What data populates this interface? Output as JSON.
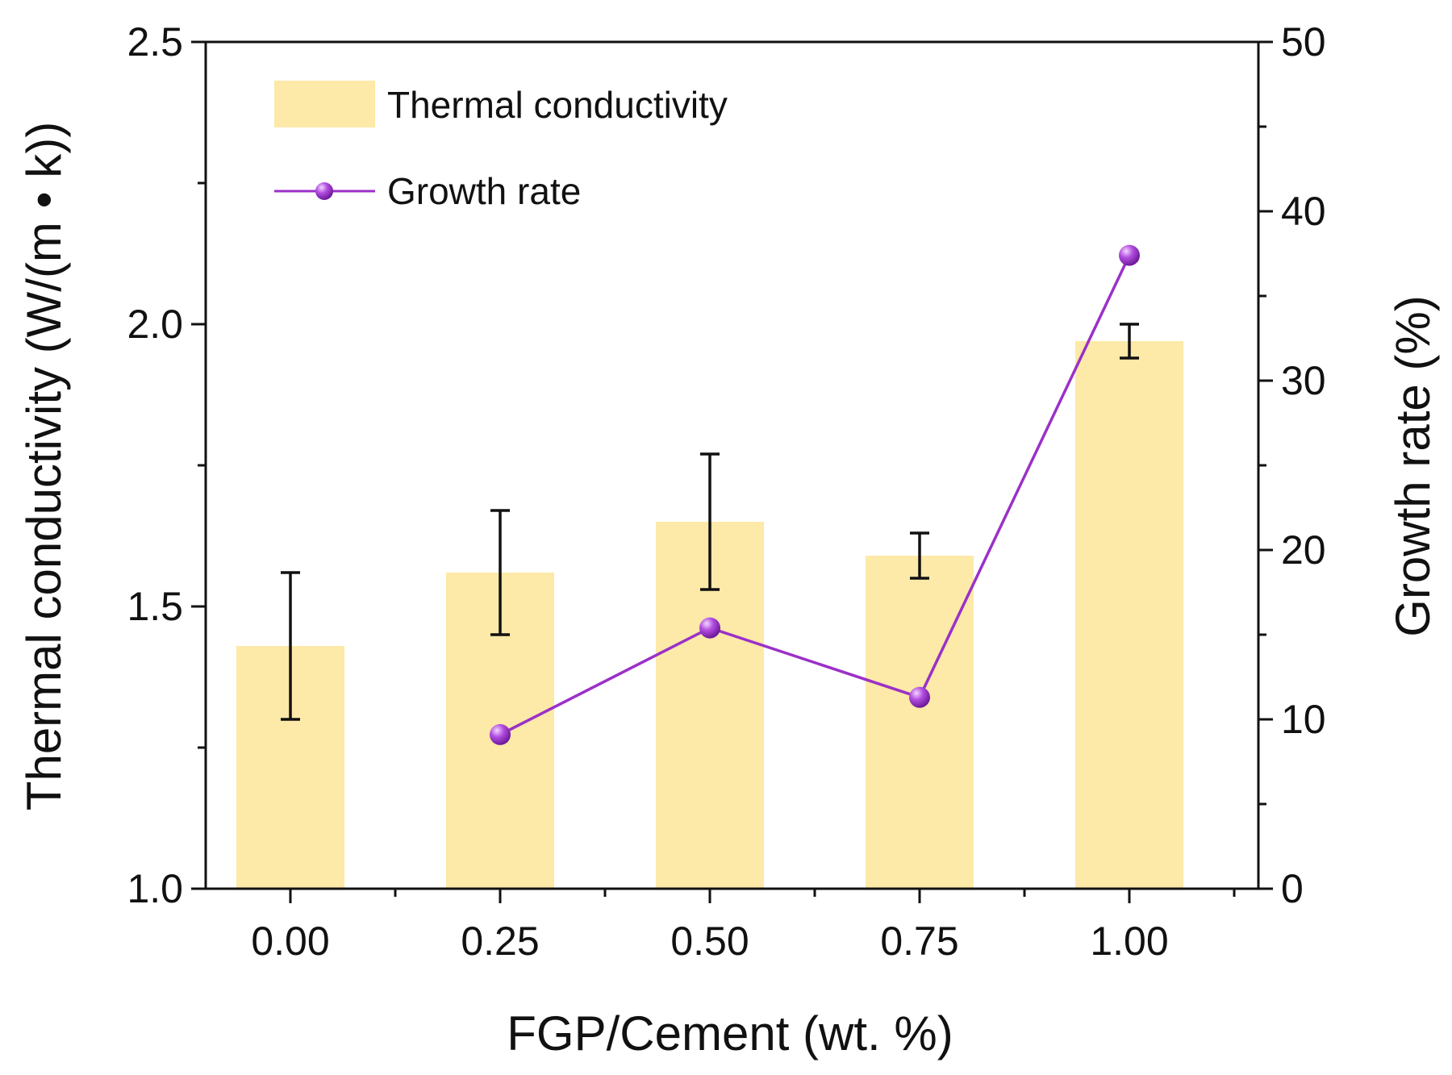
{
  "chart_data": {
    "type": "bar",
    "title": "",
    "xlabel": "FGP/Cement (wt. %)",
    "ylabel": "Thermal conductivity (W/(m • k))",
    "y2label": "Growth rate (%)",
    "categories": [
      "0.00",
      "0.25",
      "0.50",
      "0.75",
      "1.00"
    ],
    "ylim": [
      1.0,
      2.5
    ],
    "yticks": [
      "1.0",
      "1.5",
      "2.0",
      "2.5"
    ],
    "y2lim": [
      0,
      50
    ],
    "y2ticks": [
      "0",
      "10",
      "20",
      "30",
      "40",
      "50"
    ],
    "grid": false,
    "legend_position": "top-left",
    "series": [
      {
        "name": "Thermal conductivity",
        "kind": "bar",
        "axis": "left",
        "color": "#fde9a8",
        "values": [
          1.43,
          1.56,
          1.65,
          1.59,
          1.97
        ],
        "error": [
          0.13,
          0.11,
          0.12,
          0.04,
          0.03
        ]
      },
      {
        "name": "Growth rate",
        "kind": "line",
        "axis": "right",
        "color": "#9b30c8",
        "x": [
          "0.25",
          "0.50",
          "0.75",
          "1.00"
        ],
        "values": [
          9.1,
          15.4,
          11.3,
          37.4
        ]
      }
    ]
  }
}
